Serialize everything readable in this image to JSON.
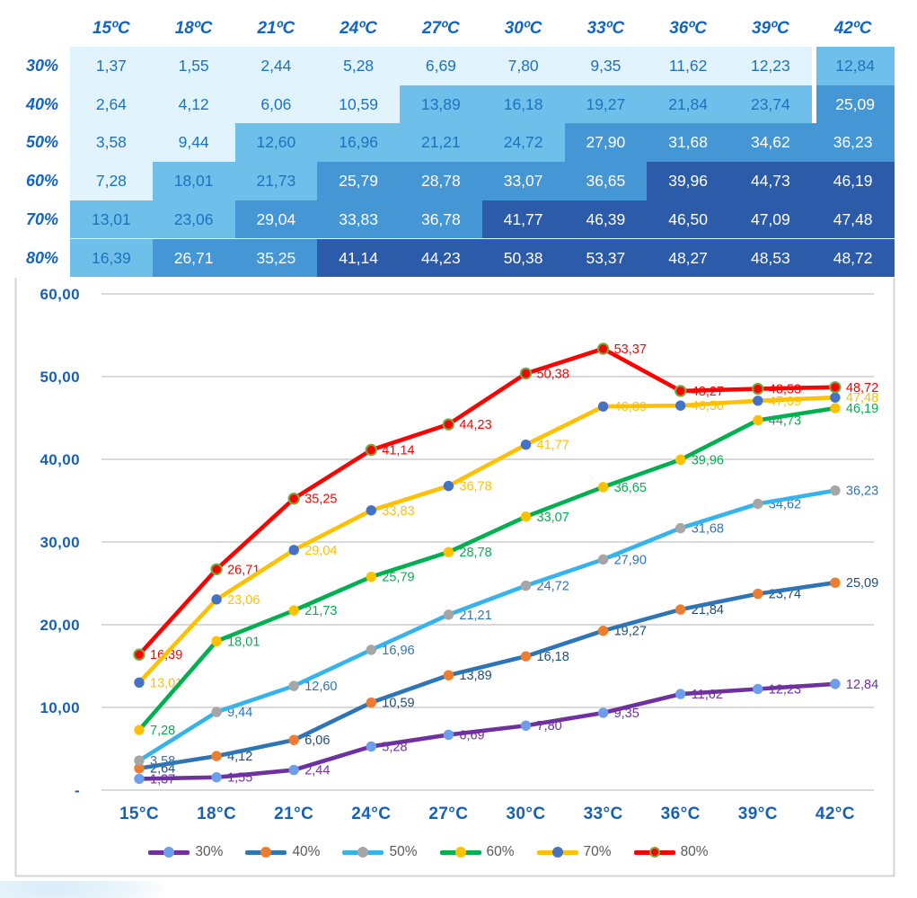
{
  "table": {
    "col_headers": [
      "15ºC",
      "18ºC",
      "21ºC",
      "24ºC",
      "27ºC",
      "30ºC",
      "33ºC",
      "36ºC",
      "39ºC",
      "42ºC"
    ],
    "row_headers": [
      "30%",
      "40%",
      "50%",
      "60%",
      "70%",
      "80%"
    ],
    "number_format": "comma-2-decimals",
    "heat_bins": {
      "thresholds": [
        12.5,
        25,
        37.5
      ],
      "colors": [
        "#E1F3FC",
        "#6EC0EB",
        "#4496D5",
        "#2C5CA9"
      ],
      "text_colors": [
        "#1D72BF",
        "#1D72BF",
        "#FFFFFF",
        "#FFFFFF"
      ]
    }
  },
  "chart_data": {
    "type": "line",
    "x_categories": [
      "15°C",
      "18°C",
      "21°C",
      "24°C",
      "27°C",
      "30°C",
      "33°C",
      "36°C",
      "39°C",
      "42°C"
    ],
    "ylim": [
      0,
      60
    ],
    "grid": true,
    "legend_position": "bottom",
    "y_ticks": [
      {
        "value": 60,
        "label": "60,00"
      },
      {
        "value": 50,
        "label": "50,00"
      },
      {
        "value": 40,
        "label": "40,00"
      },
      {
        "value": 30,
        "label": "30,00"
      },
      {
        "value": 20,
        "label": "20,00"
      },
      {
        "value": 10,
        "label": "10,00"
      },
      {
        "value": 0,
        "label": "-"
      }
    ],
    "series": [
      {
        "name": "30%",
        "values": [
          1.37,
          1.55,
          2.44,
          5.28,
          6.69,
          7.8,
          9.35,
          11.62,
          12.23,
          12.84
        ],
        "line_color": "#7030A0",
        "marker_color": "#6D9EEB",
        "marker_stroke": "",
        "label_color": "#7030A0"
      },
      {
        "name": "40%",
        "values": [
          2.64,
          4.12,
          6.06,
          10.59,
          13.89,
          16.18,
          19.27,
          21.84,
          23.74,
          25.09
        ],
        "line_color": "#2E75B6",
        "marker_color": "#ED7D31",
        "marker_stroke": "",
        "label_color": "#1F4E79"
      },
      {
        "name": "50%",
        "values": [
          3.58,
          9.44,
          12.6,
          16.96,
          21.21,
          24.72,
          27.9,
          31.68,
          34.62,
          36.23
        ],
        "line_color": "#35B4EC",
        "marker_color": "#A6A6A6",
        "marker_stroke": "",
        "label_color": "#2E75B6"
      },
      {
        "name": "60%",
        "values": [
          7.28,
          18.01,
          21.73,
          25.79,
          28.78,
          33.07,
          36.65,
          39.96,
          44.73,
          46.19
        ],
        "line_color": "#00B050",
        "marker_color": "#FFC000",
        "marker_stroke": "",
        "label_color": "#00B050"
      },
      {
        "name": "70%",
        "values": [
          13.01,
          23.06,
          29.04,
          33.83,
          36.78,
          41.77,
          46.39,
          46.5,
          47.09,
          47.48
        ],
        "line_color": "#FFC000",
        "marker_color": "#4472C4",
        "marker_stroke": "",
        "label_color": "#FFC000"
      },
      {
        "name": "80%",
        "values": [
          16.39,
          26.71,
          35.25,
          41.14,
          44.23,
          50.38,
          53.37,
          48.27,
          48.53,
          48.72
        ],
        "line_color": "#FF0000",
        "marker_color": "#FF0000",
        "marker_stroke": "#70AD47",
        "label_color": "#FF0000"
      }
    ],
    "grid_color": "#D9D9D9",
    "chart_border_color": "#D4D4D4",
    "axis_label_color": "#1761B5",
    "legend_text_color": "#595959"
  }
}
